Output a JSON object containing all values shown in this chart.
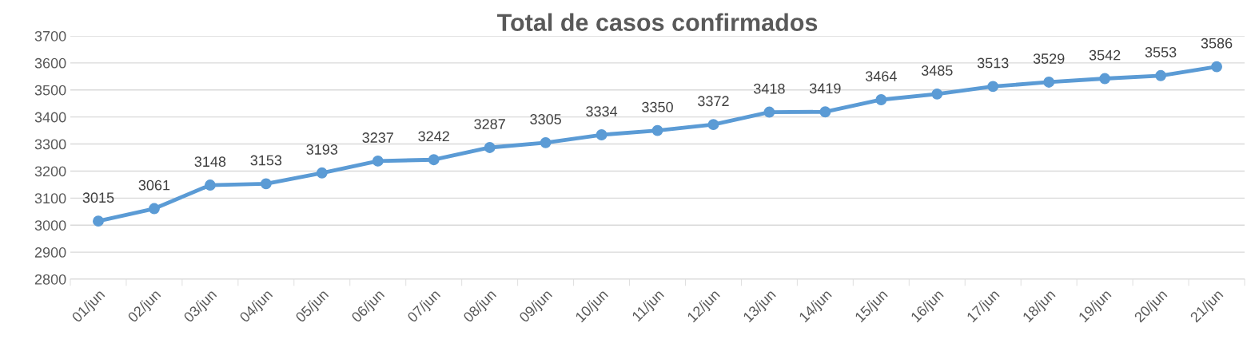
{
  "chart_data": {
    "type": "line",
    "title": "Total de casos confirmados",
    "categories": [
      "01/jun",
      "02/jun",
      "03/jun",
      "04/jun",
      "05/jun",
      "06/jun",
      "07/jun",
      "08/jun",
      "09/jun",
      "10/jun",
      "11/jun",
      "12/jun",
      "13/jun",
      "14/jun",
      "15/jun",
      "16/jun",
      "17/jun",
      "18/jun",
      "19/jun",
      "20/jun",
      "21/jun"
    ],
    "series": [
      {
        "color": "#5b9bd5",
        "values": [
          3015,
          3061,
          3148,
          3153,
          3193,
          3237,
          3242,
          3287,
          3305,
          3334,
          3350,
          3372,
          3418,
          3419,
          3464,
          3485,
          3513,
          3529,
          3542,
          3553,
          3586
        ]
      }
    ],
    "ylim": [
      2800,
      3700
    ],
    "yticks": [
      2800,
      2900,
      3000,
      3100,
      3200,
      3300,
      3400,
      3500,
      3600,
      3700
    ],
    "grid": "y",
    "marker": "circle",
    "line_style": "solid",
    "data_labels": true,
    "legend": false
  }
}
